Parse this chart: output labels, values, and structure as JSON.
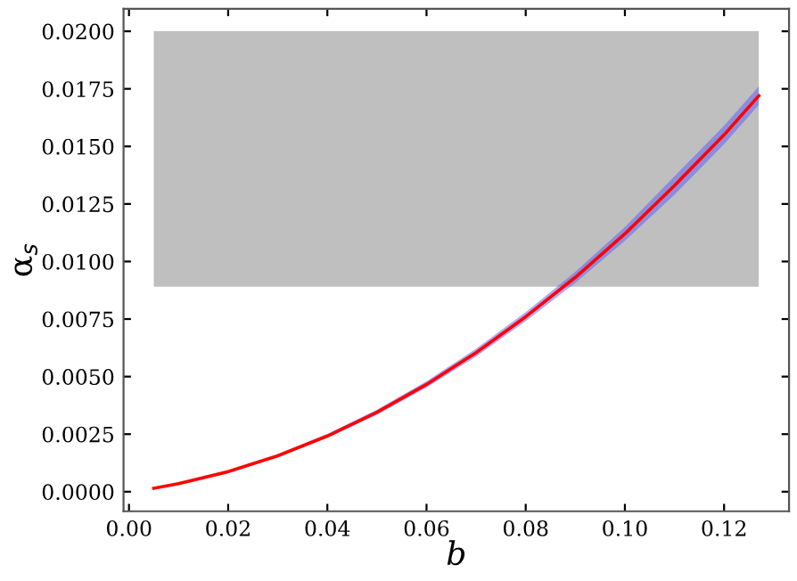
{
  "chart_data": {
    "type": "line",
    "xlabel": "b",
    "ylabel": "α$_{s}$",
    "xlim": [
      -0.0011,
      0.1331
    ],
    "ylim": [
      -0.00085,
      0.02098
    ],
    "xticks": [
      {
        "value": 0,
        "label": "0.00"
      },
      {
        "value": 0.02,
        "label": "0.02"
      },
      {
        "value": 0.04,
        "label": "0.04"
      },
      {
        "value": 0.06,
        "label": "0.06"
      },
      {
        "value": 0.08,
        "label": "0.08"
      },
      {
        "value": 0.1,
        "label": "0.10"
      },
      {
        "value": 0.12,
        "label": "0.12"
      }
    ],
    "yticks": [
      {
        "value": 0,
        "label": "0.0000"
      },
      {
        "value": 0.0025,
        "label": "0.0025"
      },
      {
        "value": 0.005,
        "label": "0.0050"
      },
      {
        "value": 0.0075,
        "label": "0.0075"
      },
      {
        "value": 0.01,
        "label": "0.0100"
      },
      {
        "value": 0.0125,
        "label": "0.0125"
      },
      {
        "value": 0.015,
        "label": "0.0150"
      },
      {
        "value": 0.0175,
        "label": "0.0175"
      },
      {
        "value": 0.02,
        "label": "0.0200"
      }
    ],
    "grid": false,
    "legend": false,
    "bands": [
      {
        "axis": "y",
        "from": 0.0089,
        "to": 0.02,
        "color": "#bfbfbf"
      }
    ],
    "series": [
      {
        "color": "#ff0000",
        "x": [
          0.005,
          0.01,
          0.02,
          0.03,
          0.04,
          0.05,
          0.06,
          0.07,
          0.08,
          0.09,
          0.1,
          0.11,
          0.12,
          0.127
        ],
        "values": [
          0.00015,
          0.00035,
          0.00087,
          0.00156,
          0.00242,
          0.00345,
          0.00466,
          0.00604,
          0.0076,
          0.00931,
          0.0112,
          0.0133,
          0.0155,
          0.0172
        ],
        "lower": [
          0.00014,
          0.00033,
          0.00083,
          0.0015,
          0.00233,
          0.00334,
          0.00452,
          0.00587,
          0.0074,
          0.00907,
          0.0109,
          0.0129,
          0.0151,
          0.0168
        ],
        "upper": [
          0.00016,
          0.00037,
          0.00091,
          0.00162,
          0.00251,
          0.00356,
          0.0048,
          0.00621,
          0.0078,
          0.00955,
          0.0115,
          0.0137,
          0.0159,
          0.0176
        ]
      }
    ]
  }
}
